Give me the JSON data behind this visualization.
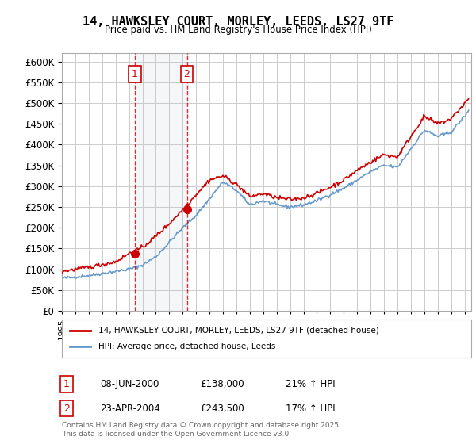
{
  "title": "14, HAWKSLEY COURT, MORLEY, LEEDS, LS27 9TF",
  "subtitle": "Price paid vs. HM Land Registry's House Price Index (HPI)",
  "ylim": [
    0,
    620000
  ],
  "yticks": [
    0,
    50000,
    100000,
    150000,
    200000,
    250000,
    300000,
    350000,
    400000,
    450000,
    500000,
    550000,
    600000
  ],
  "xlim_start": 1995.0,
  "xlim_end": 2025.5,
  "sale1_date": 2000.44,
  "sale1_price": 138000,
  "sale1_label": "1",
  "sale2_date": 2004.31,
  "sale2_price": 243500,
  "sale2_label": "2",
  "legend_entry1": "14, HAWKSLEY COURT, MORLEY, LEEDS, LS27 9TF (detached house)",
  "legend_entry2": "HPI: Average price, detached house, Leeds",
  "table_row1": [
    "1",
    "08-JUN-2000",
    "£138,000",
    "21% ↑ HPI"
  ],
  "table_row2": [
    "2",
    "23-APR-2004",
    "£243,500",
    "17% ↑ HPI"
  ],
  "copyright_text": "Contains HM Land Registry data © Crown copyright and database right 2025.\nThis data is licensed under the Open Government Licence v3.0.",
  "line_color_paid": "#cc0000",
  "line_color_hpi": "#6699cc",
  "vline_color": "#cc0000",
  "grid_color": "#cccccc",
  "background_color": "#ffffff"
}
